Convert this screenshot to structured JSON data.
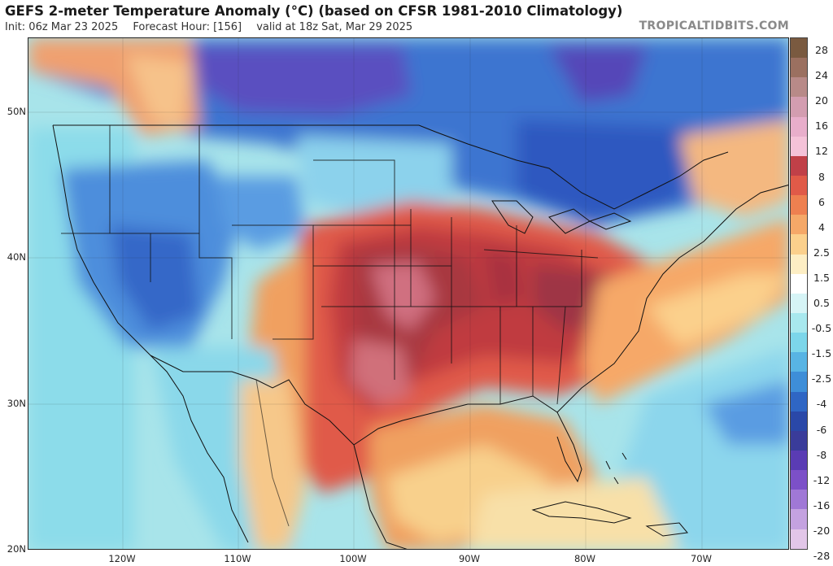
{
  "header": {
    "title": "GEFS 2-meter Temperature Anomaly (°C) (based on CFSR 1981-2010 Climatology)",
    "init": "Init: 06z Mar 23 2025",
    "forecast_hour": "Forecast Hour: [156]",
    "valid": "valid at 18z Sat, Mar 29 2025",
    "watermark": "TROPICALTIDBITS.COM"
  },
  "axes": {
    "latitude_labels": [
      "50N",
      "40N",
      "30N",
      "20N"
    ],
    "longitude_labels": [
      "120W",
      "110W",
      "100W",
      "90W",
      "80W",
      "70W"
    ]
  },
  "colorbar": {
    "labels": [
      "28",
      "24",
      "20",
      "16",
      "12",
      "8",
      "6",
      "4",
      "2.5",
      "1.5",
      "0.5",
      "-0.5",
      "-1.5",
      "-2.5",
      "-4",
      "-6",
      "-8",
      "-12",
      "-16",
      "-20",
      "-28"
    ],
    "colors": [
      "#7a5a40",
      "#9b7060",
      "#b88a88",
      "#d39db0",
      "#e8aecb",
      "#f4c2d8",
      "#c04048",
      "#e05a48",
      "#ee8050",
      "#f5a868",
      "#fbd08c",
      "#fdeec4",
      "#ffffff",
      "#d6f4f6",
      "#a8e8ee",
      "#7cd6ea",
      "#58b4e4",
      "#3e8ed8",
      "#2f66c4",
      "#2a48a8",
      "#3a3c9a",
      "#5a3cb4",
      "#7c50c8",
      "#a078d6",
      "#c4a2e0",
      "#e2c6e8"
    ]
  },
  "map": {
    "regions": [
      "Warm anomaly: Southern Plains, Mississippi Valley, Southeast US",
      "Cold anomaly: Canada, Great Lakes, Northern Rockies, West Coast"
    ]
  }
}
